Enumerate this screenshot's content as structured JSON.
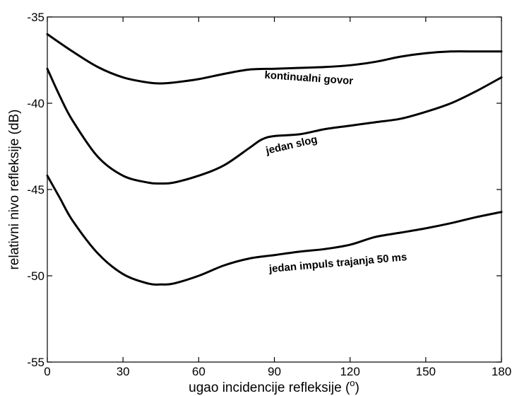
{
  "chart_data": {
    "type": "line",
    "xlabel": "ugao incidencije refleksije (",
    "xlabel_unit": "o",
    "xlabel_close": ")",
    "ylabel": "relativni nivo refleksije (dB)",
    "xlim": [
      0,
      180
    ],
    "ylim": [
      -55,
      -35
    ],
    "xticks": [
      0,
      30,
      60,
      90,
      120,
      150,
      180
    ],
    "yticks": [
      -55,
      -50,
      -45,
      -40,
      -35
    ],
    "xtick_labels": [
      "0",
      "30",
      "60",
      "90",
      "120",
      "150",
      "180"
    ],
    "ytick_labels": [
      "-55",
      "-50",
      "-45",
      "-40",
      "-35"
    ],
    "grid": false,
    "series": [
      {
        "name": "kontinualni govor",
        "x": [
          0,
          10,
          20,
          30,
          40,
          45,
          50,
          60,
          70,
          80,
          90,
          100,
          110,
          120,
          130,
          140,
          150,
          160,
          170,
          180
        ],
        "y": [
          -36.0,
          -37.0,
          -37.9,
          -38.5,
          -38.8,
          -38.85,
          -38.8,
          -38.6,
          -38.3,
          -38.05,
          -38.0,
          -37.95,
          -37.9,
          -37.8,
          -37.6,
          -37.3,
          -37.1,
          -37.0,
          -37.0,
          -37.0
        ]
      },
      {
        "name": "jedan slog",
        "x": [
          0,
          5,
          10,
          20,
          30,
          40,
          45,
          50,
          60,
          70,
          80,
          85,
          90,
          100,
          110,
          120,
          130,
          140,
          150,
          160,
          170,
          180
        ],
        "y": [
          -38.0,
          -39.6,
          -41.0,
          -43.1,
          -44.2,
          -44.6,
          -44.65,
          -44.6,
          -44.2,
          -43.6,
          -42.6,
          -42.1,
          -41.9,
          -41.8,
          -41.5,
          -41.3,
          -41.1,
          -40.9,
          -40.5,
          -40.0,
          -39.3,
          -38.5
        ]
      },
      {
        "name": "jedan impuls trajanja 50 ms",
        "x": [
          0,
          5,
          10,
          20,
          30,
          40,
          45,
          50,
          60,
          70,
          80,
          90,
          100,
          110,
          120,
          130,
          140,
          150,
          160,
          170,
          180
        ],
        "y": [
          -44.2,
          -45.5,
          -46.8,
          -48.7,
          -49.9,
          -50.45,
          -50.5,
          -50.45,
          -50.0,
          -49.4,
          -49.0,
          -48.8,
          -48.6,
          -48.45,
          -48.2,
          -47.75,
          -47.5,
          -47.25,
          -46.95,
          -46.6,
          -46.3
        ]
      }
    ],
    "labels": [
      {
        "text": "kontinualni govor",
        "x": 86,
        "y": -38.55,
        "rotation": 4
      },
      {
        "text": "jedan slog",
        "x": 87,
        "y": -42.95,
        "rotation": -13
      },
      {
        "text": "jedan impuls trajanja 50 ms",
        "x": 88,
        "y": -49.8,
        "rotation": -5
      }
    ]
  }
}
